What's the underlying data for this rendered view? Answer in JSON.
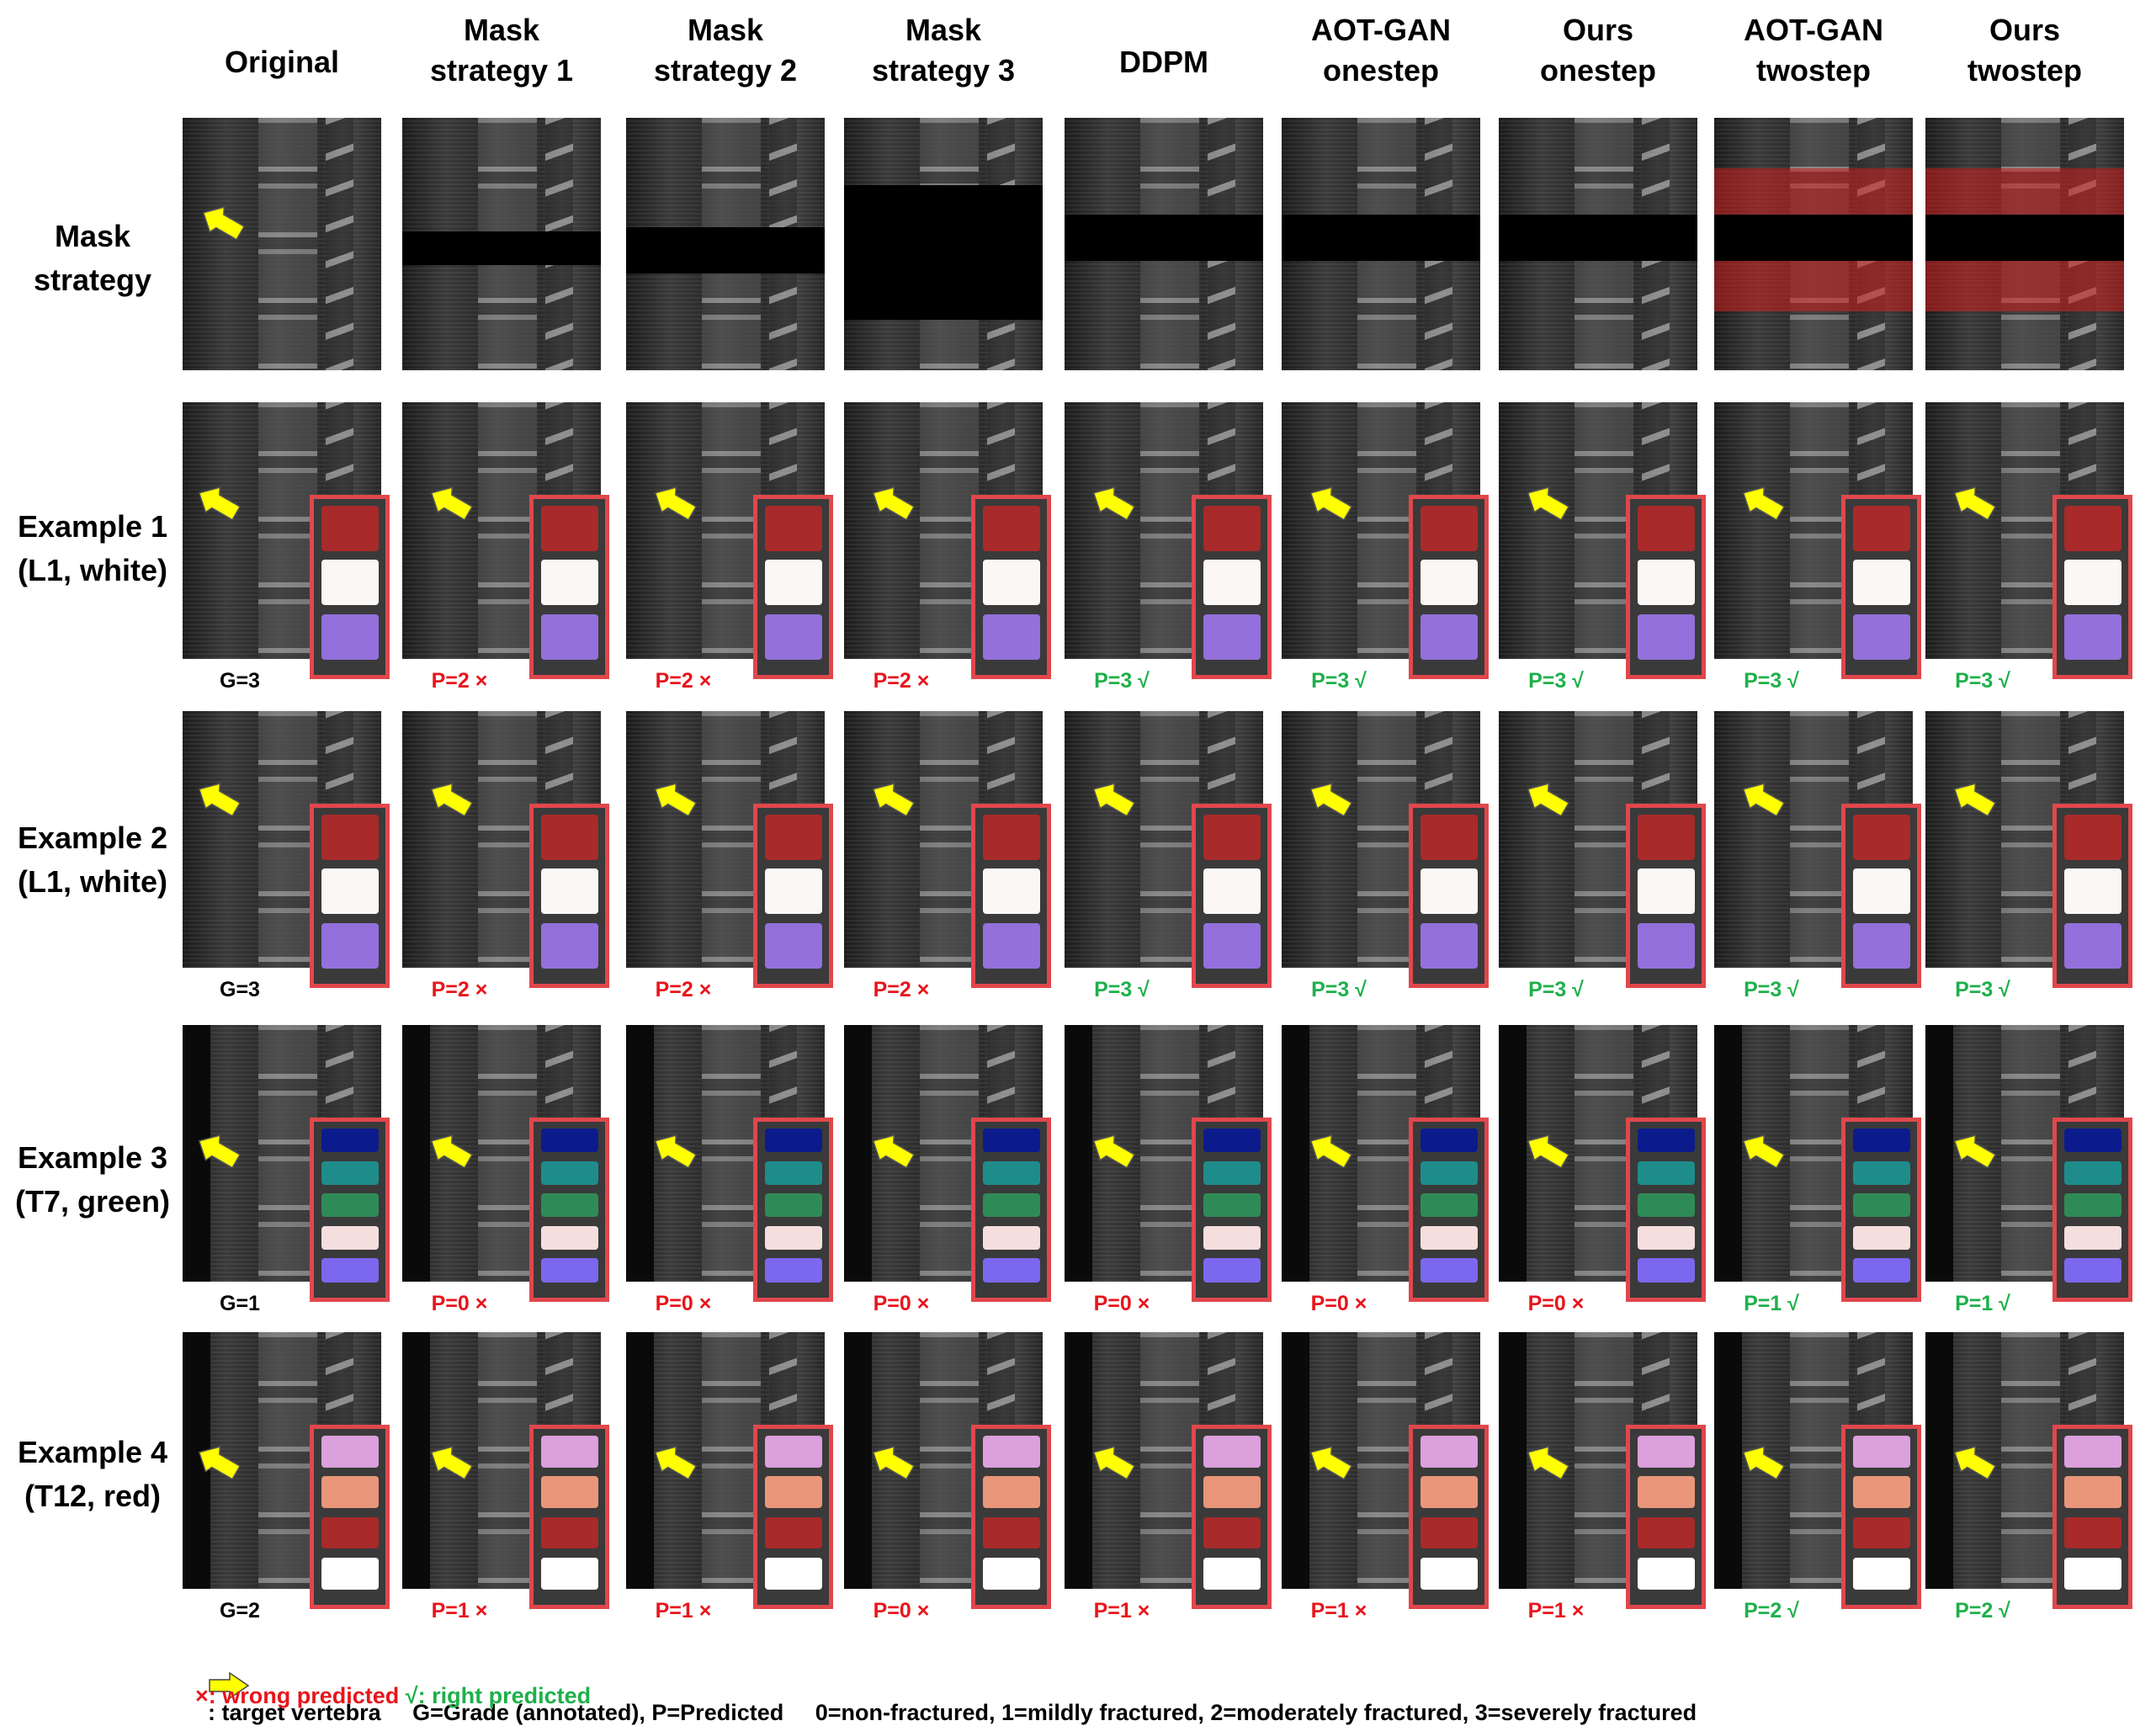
{
  "columns": [
    "Original",
    "Mask\nstrategy 1",
    "Mask\nstrategy 2",
    "Mask\nstrategy 3",
    "DDPM",
    "AOT-GAN\nonestep",
    "Ours\nonestep",
    "AOT-GAN\ntwostep",
    "Ours\ntwostep"
  ],
  "rows": [
    {
      "label": "Mask\nstrategy"
    },
    {
      "label": "Example 1\n(L1, white)",
      "grades": [
        "G=3",
        "P=2 ×",
        "P=2 ×",
        "P=2 ×",
        "P=3 √",
        "P=3 √",
        "P=3 √",
        "P=3 √",
        "P=3 √"
      ]
    },
    {
      "label": "Example 2\n(L1, white)",
      "grades": [
        "G=3",
        "P=2 ×",
        "P=2 ×",
        "P=2 ×",
        "P=3 √",
        "P=3 √",
        "P=3 √",
        "P=3 √",
        "P=3 √"
      ]
    },
    {
      "label": "Example 3\n(T7, green)",
      "grades": [
        "G=1",
        "P=0 ×",
        "P=0 ×",
        "P=0 ×",
        "P=0 ×",
        "P=0 ×",
        "P=0 ×",
        "P=1 √",
        "P=1 √"
      ]
    },
    {
      "label": "Example 4\n(T12, red)",
      "grades": [
        "G=2",
        "P=1 ×",
        "P=1 ×",
        "P=0 ×",
        "P=1 ×",
        "P=1 ×",
        "P=1 ×",
        "P=2 √",
        "P=2 √"
      ]
    }
  ],
  "legend": {
    "arrow_text": ": target vertebra",
    "grade_text": "G=Grade (annotated), P=Predicted",
    "scale_text": "0=non-fractured, 1=mildly fractured, 2=moderately fractured, 3=severely fractured",
    "wrong_text": "×: wrong predicted",
    "right_text": "√: right predicted"
  },
  "colors": {
    "seg_border": "#e0474c",
    "arrow": "#ffff00",
    "wrong": "#e8151c",
    "right": "#1eb04a",
    "seg_white_case": [
      "#a82a2a",
      "#fbf7f5",
      "#9370db"
    ],
    "seg_green_case": [
      "#0b1b8c",
      "#1f8c8c",
      "#2e8b57",
      "#f5dede",
      "#7b68ee"
    ],
    "seg_red_case": [
      "#dca0dc",
      "#e9967a",
      "#a82a2a",
      "#ffffff"
    ]
  }
}
